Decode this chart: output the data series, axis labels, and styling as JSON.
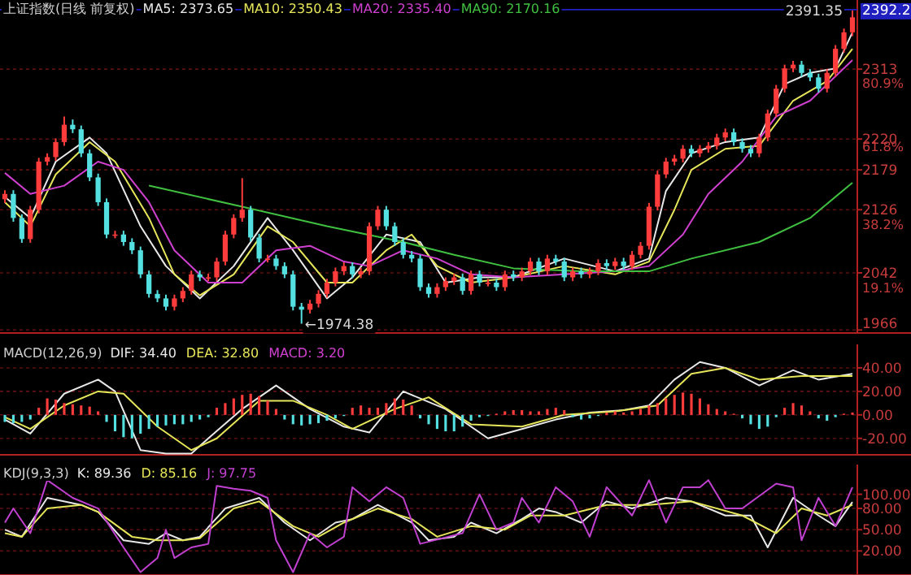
{
  "chart_data": [
    {
      "type": "candlestick",
      "title": "上证指数(日线 前复权)",
      "legend": "top",
      "grid": "y",
      "tick_labels": "y",
      "categories": [
        null,
        null,
        null,
        null,
        null,
        null,
        null,
        null,
        null,
        null,
        null,
        null,
        null,
        null,
        null,
        null,
        null,
        null,
        null,
        null,
        null,
        null,
        null,
        null,
        null,
        null,
        null,
        null,
        null,
        null,
        null,
        null,
        null,
        null,
        null,
        null,
        null,
        null,
        null,
        null,
        null,
        null,
        null,
        null,
        null,
        null,
        null,
        null,
        null,
        null,
        null,
        null,
        null,
        null,
        null,
        null,
        null,
        null,
        null,
        null,
        null,
        null,
        null,
        null,
        null,
        null,
        null,
        null,
        null,
        null,
        null,
        null,
        null,
        null,
        null,
        null,
        null,
        null,
        null,
        null,
        null,
        null,
        null,
        null,
        null,
        null,
        null,
        null,
        null,
        null,
        null,
        null,
        null,
        null,
        null,
        null,
        null,
        null,
        null,
        null,
        null
      ],
      "ohlc": [
        [
          2140,
          2152,
          2135,
          2147
        ],
        [
          2147,
          2152,
          2110,
          2115
        ],
        [
          2115,
          2120,
          2082,
          2087
        ],
        [
          2087,
          2131,
          2082,
          2126
        ],
        [
          2126,
          2195,
          2121,
          2190
        ],
        [
          2190,
          2201,
          2185,
          2196
        ],
        [
          2196,
          2221,
          2191,
          2216
        ],
        [
          2216,
          2250,
          2211,
          2239
        ],
        [
          2239,
          2246,
          2228,
          2233
        ],
        [
          2233,
          2238,
          2196,
          2201
        ],
        [
          2201,
          2206,
          2164,
          2169
        ],
        [
          2169,
          2174,
          2131,
          2136
        ],
        [
          2136,
          2141,
          2088,
          2093
        ],
        [
          2093,
          2098,
          2088,
          2093
        ],
        [
          2093,
          2098,
          2078,
          2083
        ],
        [
          2083,
          2088,
          2067,
          2072
        ],
        [
          2072,
          2077,
          2035,
          2040
        ],
        [
          2040,
          2045,
          2009,
          2014
        ],
        [
          2014,
          2019,
          2003,
          2008
        ],
        [
          2008,
          2013,
          1992,
          1997
        ],
        [
          1997,
          2013,
          1992,
          2008
        ],
        [
          2008,
          2023,
          2003,
          2018
        ],
        [
          2018,
          2045,
          2013,
          2040
        ],
        [
          2040,
          2045,
          2031,
          2036
        ],
        [
          2036,
          2041,
          2031,
          2036
        ],
        [
          2036,
          2062,
          2031,
          2057
        ],
        [
          2057,
          2098,
          2052,
          2093
        ],
        [
          2093,
          2120,
          2088,
          2115
        ],
        [
          2115,
          2168,
          2110,
          2126
        ],
        [
          2126,
          2131,
          2084,
          2089
        ],
        [
          2089,
          2094,
          2056,
          2061
        ],
        [
          2061,
          2066,
          2056,
          2061
        ],
        [
          2061,
          2066,
          2046,
          2051
        ],
        [
          2051,
          2056,
          2035,
          2040
        ],
        [
          2040,
          2045,
          1992,
          1997
        ],
        [
          1997,
          2002,
          1974.38,
          1993
        ],
        [
          1993,
          2006,
          1988,
          2001
        ],
        [
          2001,
          2019,
          1996,
          2014
        ],
        [
          2014,
          2034,
          2009,
          2029
        ],
        [
          2029,
          2049,
          2024,
          2044
        ],
        [
          2044,
          2056,
          2039,
          2051
        ],
        [
          2051,
          2056,
          2035,
          2040
        ],
        [
          2040,
          2049,
          2035,
          2044
        ],
        [
          2044,
          2109,
          2039,
          2104
        ],
        [
          2104,
          2131,
          2099,
          2126
        ],
        [
          2126,
          2131,
          2099,
          2104
        ],
        [
          2104,
          2109,
          2078,
          2083
        ],
        [
          2083,
          2088,
          2061,
          2066
        ],
        [
          2066,
          2071,
          2056,
          2061
        ],
        [
          2061,
          2066,
          2018,
          2023
        ],
        [
          2023,
          2028,
          2009,
          2014
        ],
        [
          2014,
          2028,
          2009,
          2023
        ],
        [
          2023,
          2036,
          2018,
          2031
        ],
        [
          2031,
          2041,
          2026,
          2036
        ],
        [
          2036,
          2041,
          2013,
          2018
        ],
        [
          2018,
          2045,
          2013,
          2040
        ],
        [
          2040,
          2045,
          2024,
          2029
        ],
        [
          2029,
          2034,
          2024,
          2029
        ],
        [
          2029,
          2034,
          2018,
          2023
        ],
        [
          2023,
          2045,
          2018,
          2040
        ],
        [
          2040,
          2045,
          2031,
          2036
        ],
        [
          2036,
          2049,
          2031,
          2044
        ],
        [
          2044,
          2062,
          2039,
          2057
        ],
        [
          2057,
          2062,
          2039,
          2044
        ],
        [
          2044,
          2066,
          2039,
          2061
        ],
        [
          2061,
          2066,
          2052,
          2057
        ],
        [
          2057,
          2062,
          2031,
          2036
        ],
        [
          2036,
          2049,
          2031,
          2044
        ],
        [
          2044,
          2049,
          2035,
          2040
        ],
        [
          2040,
          2049,
          2035,
          2044
        ],
        [
          2044,
          2060,
          2039,
          2055
        ],
        [
          2055,
          2060,
          2046,
          2051
        ],
        [
          2051,
          2062,
          2046,
          2057
        ],
        [
          2057,
          2062,
          2046,
          2051
        ],
        [
          2051,
          2071,
          2046,
          2066
        ],
        [
          2066,
          2083,
          2061,
          2078
        ],
        [
          2078,
          2135,
          2073,
          2130
        ],
        [
          2130,
          2178,
          2125,
          2173
        ],
        [
          2173,
          2195,
          2168,
          2190
        ],
        [
          2190,
          2199,
          2185,
          2194
        ],
        [
          2194,
          2212,
          2189,
          2207
        ],
        [
          2207,
          2212,
          2196,
          2201
        ],
        [
          2201,
          2212,
          2196,
          2207
        ],
        [
          2207,
          2216,
          2202,
          2211
        ],
        [
          2211,
          2227,
          2206,
          2222
        ],
        [
          2222,
          2234,
          2217,
          2229
        ],
        [
          2229,
          2234,
          2211,
          2216
        ],
        [
          2216,
          2221,
          2202,
          2207
        ],
        [
          2207,
          2212,
          2196,
          2201
        ],
        [
          2201,
          2227,
          2196,
          2222
        ],
        [
          2222,
          2259,
          2217,
          2254
        ],
        [
          2254,
          2292,
          2249,
          2287
        ],
        [
          2287,
          2319,
          2282,
          2314
        ],
        [
          2314,
          2324,
          2309,
          2319
        ],
        [
          2319,
          2324,
          2303,
          2308
        ],
        [
          2308,
          2313,
          2297,
          2302
        ],
        [
          2302,
          2307,
          2282,
          2287
        ],
        [
          2287,
          2313,
          2282,
          2308
        ],
        [
          2308,
          2345,
          2303,
          2340
        ],
        [
          2340,
          2367,
          2335,
          2362
        ],
        [
          2362,
          2391.35,
          2357,
          2382
        ]
      ],
      "series": [
        {
          "name": "MA5: 2373.65",
          "color": "#e8e8e8",
          "type": "line",
          "values": [
            2143,
            null,
            null,
            2115,
            null,
            null,
            2190,
            null,
            null,
            null,
            2222,
            null,
            2201,
            null,
            null,
            null,
            2104,
            null,
            null,
            2051,
            null,
            null,
            null,
            2008,
            null,
            null,
            null,
            2051,
            null,
            null,
            null,
            2115,
            null,
            null,
            2072,
            null,
            null,
            null,
            2008,
            null,
            null,
            2036,
            null,
            null,
            null,
            2093,
            null,
            null,
            null,
            2083,
            null,
            null,
            2029,
            null,
            null,
            null,
            2036,
            null,
            null,
            null,
            2036,
            null,
            null,
            null,
            null,
            null,
            2061,
            null,
            null,
            null,
            null,
            null,
            2044,
            null,
            null,
            null,
            2061,
            null,
            2151,
            null,
            null,
            2201,
            null,
            null,
            null,
            2216,
            null,
            null,
            null,
            2222,
            null,
            null,
            2293,
            null,
            null,
            2308,
            null,
            null,
            2314,
            null,
            2362
          ]
        },
        {
          "name": "MA10: 2350.43",
          "color": "#e6e65a",
          "type": "line",
          "values": [
            2136,
            null,
            null,
            2104,
            null,
            null,
            2173,
            null,
            null,
            null,
            2216,
            null,
            null,
            2190,
            null,
            null,
            null,
            2115,
            null,
            null,
            2040,
            null,
            null,
            2012,
            null,
            null,
            null,
            2040,
            null,
            null,
            null,
            2104,
            null,
            null,
            2083,
            null,
            null,
            null,
            2029,
            null,
            null,
            2029,
            null,
            null,
            null,
            2072,
            null,
            null,
            2093,
            null,
            null,
            2051,
            null,
            null,
            null,
            2029,
            null,
            null,
            null,
            null,
            2036,
            null,
            null,
            null,
            null,
            null,
            2051,
            null,
            null,
            null,
            null,
            null,
            2040,
            null,
            null,
            null,
            2057,
            null,
            null,
            2126,
            null,
            2179,
            null,
            null,
            null,
            2207,
            null,
            null,
            null,
            2211,
            null,
            null,
            null,
            2271,
            null,
            null,
            null,
            2297,
            null,
            null,
            2340
          ]
        },
        {
          "name": "MA20: 2335.40",
          "color": "#d040d0",
          "type": "line",
          "values": [
            2175,
            null,
            null,
            2147,
            null,
            null,
            null,
            2158,
            null,
            null,
            null,
            2190,
            null,
            null,
            2179,
            null,
            null,
            2136,
            null,
            null,
            2072,
            null,
            null,
            null,
            2029,
            null,
            null,
            null,
            2029,
            null,
            null,
            null,
            2072,
            null,
            null,
            null,
            2078,
            null,
            null,
            null,
            2057,
            null,
            null,
            2051,
            null,
            null,
            null,
            2072,
            null,
            null,
            null,
            2061,
            null,
            null,
            null,
            2040,
            null,
            null,
            null,
            null,
            2036,
            null,
            null,
            null,
            null,
            null,
            2040,
            null,
            null,
            null,
            null,
            null,
            2044,
            null,
            null,
            null,
            2051,
            null,
            null,
            null,
            2093,
            null,
            null,
            2147,
            null,
            null,
            null,
            2190,
            null,
            null,
            null,
            2250,
            null,
            null,
            null,
            2271,
            null,
            null,
            null,
            null,
            2325
          ]
        },
        {
          "name": "MA90: 2170.16",
          "color": "#40c040",
          "type": "line",
          "values": [
            null,
            null,
            null,
            null,
            null,
            null,
            null,
            null,
            null,
            null,
            null,
            null,
            null,
            null,
            null,
            null,
            null,
            2158,
            null,
            null,
            null,
            null,
            null,
            null,
            null,
            null,
            null,
            null,
            2130,
            null,
            null,
            null,
            null,
            null,
            null,
            null,
            null,
            null,
            2104,
            null,
            null,
            null,
            null,
            null,
            null,
            null,
            null,
            2083,
            null,
            null,
            null,
            null,
            null,
            2066,
            null,
            null,
            null,
            null,
            null,
            null,
            2048,
            null,
            null,
            null,
            null,
            null,
            null,
            null,
            2044,
            null,
            null,
            null,
            null,
            null,
            null,
            null,
            2044,
            null,
            null,
            null,
            null,
            2061,
            null,
            null,
            null,
            null,
            null,
            null,
            null,
            2083,
            null,
            null,
            null,
            null,
            null,
            2115,
            null,
            null,
            null,
            null,
            2162
          ]
        }
      ],
      "ylim": [
        1962,
        2405
      ],
      "yticks": [
        1966,
        2042,
        2126,
        2179,
        2220,
        2313
      ],
      "y2lim": [
        0.9,
        101.6
      ],
      "y2ticks": [
        {
          "value": 19.1,
          "label": "19.1%"
        },
        {
          "value": 38.2,
          "label": "38.2%"
        },
        {
          "value": 61.8,
          "label": "61.8%"
        },
        {
          "value": 80.9,
          "label": "80.9%"
        }
      ],
      "ref_lines": [
        {
          "axis": "y",
          "value": 2392.2,
          "label": "2392.2",
          "color": "#2020c0"
        }
      ],
      "annotations": [
        "2391.35",
        "←1974.38"
      ]
    },
    {
      "type": "bar",
      "title": "MACD(12,26,9)",
      "legend": "top",
      "annotations": [
        "MACD: 3.20"
      ],
      "grid": "y",
      "tick_labels": "y",
      "categories": [
        null,
        null,
        null,
        null,
        null,
        null,
        null,
        null,
        null,
        null,
        null,
        null,
        null,
        null,
        null,
        null,
        null,
        null,
        null,
        null,
        null,
        null,
        null,
        null,
        null,
        null,
        null,
        null,
        null,
        null,
        null,
        null,
        null,
        null,
        null,
        null,
        null,
        null,
        null,
        null,
        null,
        null,
        null,
        null,
        null,
        null,
        null,
        null,
        null,
        null,
        null,
        null,
        null,
        null,
        null,
        null,
        null,
        null,
        null,
        null,
        null,
        null,
        null,
        null,
        null,
        null,
        null,
        null,
        null,
        null,
        null,
        null,
        null,
        null,
        null,
        null,
        null,
        null,
        null,
        null,
        null,
        null,
        null,
        null,
        null,
        null,
        null,
        null,
        null,
        null,
        null,
        null,
        null,
        null,
        null,
        null,
        null,
        null,
        null,
        null,
        null
      ],
      "series": [
        {
          "name": "DIF: 34.40",
          "color": "#e8e8e8",
          "type": "line",
          "values": [
            -4,
            null,
            null,
            -16,
            null,
            null,
            null,
            18,
            null,
            null,
            null,
            30,
            null,
            20,
            null,
            null,
            -30,
            null,
            null,
            -33,
            null,
            null,
            -33,
            null,
            -20,
            null,
            null,
            null,
            5,
            null,
            null,
            null,
            25,
            null,
            null,
            null,
            5,
            null,
            null,
            null,
            -10,
            null,
            null,
            -15,
            null,
            null,
            null,
            20,
            null,
            null,
            null,
            null,
            5,
            null,
            null,
            null,
            null,
            -20,
            null,
            null,
            null,
            -12,
            null,
            null,
            null,
            -4,
            null,
            null,
            null,
            2,
            null,
            null,
            null,
            4,
            null,
            null,
            8,
            null,
            null,
            30,
            null,
            null,
            45,
            null,
            null,
            40,
            null,
            null,
            null,
            25,
            null,
            null,
            null,
            38,
            null,
            null,
            30,
            null,
            null,
            null,
            35
          ]
        },
        {
          "name": "DEA: 32.80",
          "color": "#e6e65a",
          "type": "line",
          "values": [
            -2,
            null,
            null,
            -12,
            null,
            null,
            null,
            8,
            null,
            null,
            null,
            20,
            null,
            null,
            18,
            null,
            null,
            null,
            -10,
            null,
            null,
            null,
            -30,
            null,
            null,
            -20,
            null,
            null,
            null,
            null,
            12,
            null,
            null,
            null,
            12,
            null,
            null,
            null,
            0,
            null,
            null,
            -12,
            null,
            null,
            null,
            null,
            5,
            null,
            null,
            null,
            15,
            null,
            null,
            null,
            null,
            -8,
            null,
            null,
            null,
            null,
            null,
            -10,
            null,
            null,
            null,
            null,
            0,
            null,
            null,
            null,
            null,
            null,
            3,
            null,
            null,
            null,
            null,
            8,
            null,
            null,
            null,
            35,
            null,
            null,
            null,
            40,
            null,
            null,
            null,
            30,
            null,
            null,
            null,
            null,
            33,
            null,
            null,
            null,
            null,
            null,
            33
          ]
        },
        {
          "type": "bar",
          "colors": [
            "#54e0e0",
            "#54e0e0",
            "#54e0e0",
            "#54e0e0",
            "#ff3c3c",
            "#ff3c3c",
            "#ff3c3c",
            "#ff3c3c",
            "#ff3c3c",
            "#ff3c3c",
            "#ff3c3c",
            "#ff3c3c",
            "#54e0e0",
            "#54e0e0",
            "#54e0e0",
            "#54e0e0",
            "#54e0e0",
            "#54e0e0",
            "#54e0e0",
            "#54e0e0",
            "#54e0e0",
            "#54e0e0",
            "#54e0e0",
            "#54e0e0",
            "#54e0e0",
            "#ff3c3c",
            "#ff3c3c",
            "#ff3c3c",
            "#ff3c3c",
            "#ff3c3c",
            "#ff3c3c",
            "#ff3c3c",
            "#ff3c3c",
            "#54e0e0",
            "#54e0e0",
            "#54e0e0",
            "#54e0e0",
            "#54e0e0",
            "#54e0e0",
            "#54e0e0",
            "#54e0e0",
            "#ff3c3c",
            "#ff3c3c",
            "#ff3c3c",
            "#ff3c3c",
            "#ff3c3c",
            "#ff3c3c",
            "#ff3c3c",
            "#ff3c3c",
            "#54e0e0",
            "#54e0e0",
            "#54e0e0",
            "#54e0e0",
            "#54e0e0",
            "#54e0e0",
            "#54e0e0",
            "#54e0e0",
            "#54e0e0",
            "#ff3c3c",
            "#ff3c3c",
            "#ff3c3c",
            "#ff3c3c",
            "#ff3c3c",
            "#ff3c3c",
            "#ff3c3c",
            "#ff3c3c",
            "#ff3c3c",
            "#54e0e0",
            "#54e0e0",
            "#54e0e0",
            "#54e0e0",
            "#ff3c3c",
            "#ff3c3c",
            "#ff3c3c",
            "#ff3c3c",
            "#ff3c3c",
            "#ff3c3c",
            "#ff3c3c",
            "#ff3c3c",
            "#ff3c3c",
            "#ff3c3c",
            "#ff3c3c",
            "#ff3c3c",
            "#ff3c3c",
            "#ff3c3c",
            "#ff3c3c",
            "#ff3c3c",
            "#54e0e0",
            "#54e0e0",
            "#54e0e0",
            "#54e0e0",
            "#54e0e0",
            "#ff3c3c",
            "#ff3c3c",
            "#ff3c3c",
            "#ff3c3c",
            "#54e0e0",
            "#54e0e0",
            "#54e0e0",
            "#ff3c3c",
            "#ff3c3c"
          ],
          "values": [
            -6,
            -7,
            -6,
            -4,
            6,
            14,
            13,
            10,
            9,
            8,
            7,
            3,
            -6,
            -14,
            -19,
            -20,
            -16,
            -12,
            -10,
            -9,
            -8,
            -8,
            -6,
            -4,
            -2,
            6,
            10,
            14,
            17,
            18,
            16,
            12,
            5,
            -4,
            -8,
            -9,
            -8,
            -7,
            -5,
            -3,
            -1,
            6,
            8,
            6,
            6,
            10,
            14,
            13,
            8,
            -3,
            -8,
            -12,
            -14,
            -14,
            -10,
            -5,
            -2,
            -1,
            1,
            3,
            4,
            4,
            3,
            3,
            5,
            6,
            4,
            -2,
            -4,
            -3,
            -1,
            2,
            3,
            2,
            3,
            5,
            8,
            10,
            14,
            17,
            19,
            18,
            14,
            9,
            5,
            3,
            1,
            -3,
            -8,
            -12,
            -10,
            -2,
            6,
            10,
            8,
            3,
            -3,
            -5,
            -2,
            1,
            2
          ]
        }
      ],
      "ylim": [
        -34,
        60
      ],
      "yticks": [
        {
          "value": -20,
          "label": "-20.00"
        },
        {
          "value": 0,
          "label": "0.00"
        },
        {
          "value": 20,
          "label": "20.00"
        },
        {
          "value": 40,
          "label": "40.00"
        }
      ]
    },
    {
      "type": "line",
      "title": "KDJ(9,3,3)",
      "legend": "top",
      "grid": "y",
      "tick_labels": "y",
      "categories": [
        null,
        null,
        null,
        null,
        null,
        null,
        null,
        null,
        null,
        null,
        null,
        null,
        null,
        null,
        null,
        null,
        null,
        null,
        null,
        null,
        null,
        null,
        null,
        null,
        null,
        null,
        null,
        null,
        null,
        null,
        null,
        null,
        null,
        null,
        null,
        null,
        null,
        null,
        null,
        null,
        null,
        null,
        null,
        null,
        null,
        null,
        null,
        null,
        null,
        null,
        null,
        null,
        null,
        null,
        null,
        null,
        null,
        null,
        null,
        null,
        null,
        null,
        null,
        null,
        null,
        null,
        null,
        null,
        null,
        null,
        null,
        null,
        null,
        null,
        null,
        null,
        null,
        null,
        null,
        null,
        null,
        null,
        null,
        null,
        null,
        null,
        null,
        null,
        null,
        null,
        null,
        null,
        null,
        null,
        null,
        null,
        null,
        null,
        null,
        null,
        null
      ],
      "series": [
        {
          "name": "K: 89.36",
          "color": "#e8e8e8",
          "values": [
            50,
            null,
            40,
            null,
            null,
            95,
            null,
            null,
            null,
            85,
            null,
            75,
            null,
            null,
            35,
            null,
            null,
            30,
            null,
            45,
            null,
            35,
            null,
            40,
            null,
            null,
            80,
            null,
            null,
            null,
            95,
            null,
            null,
            60,
            null,
            null,
            35,
            null,
            null,
            60,
            null,
            65,
            null,
            null,
            85,
            null,
            null,
            null,
            60,
            null,
            35,
            null,
            null,
            40,
            null,
            60,
            null,
            null,
            45,
            null,
            null,
            65,
            null,
            80,
            null,
            75,
            null,
            null,
            60,
            null,
            null,
            90,
            null,
            null,
            80,
            null,
            null,
            null,
            95,
            null,
            null,
            90,
            null,
            null,
            null,
            70,
            null,
            null,
            70,
            null,
            25,
            null,
            null,
            95,
            null,
            null,
            70,
            null,
            55,
            null,
            89
          ]
        },
        {
          "name": "D: 85.16",
          "color": "#e6e65a",
          "values": [
            45,
            null,
            40,
            null,
            null,
            80,
            null,
            null,
            null,
            85,
            null,
            75,
            null,
            null,
            null,
            40,
            null,
            null,
            35,
            null,
            null,
            35,
            null,
            38,
            null,
            null,
            null,
            80,
            null,
            null,
            90,
            null,
            null,
            null,
            55,
            null,
            null,
            40,
            null,
            null,
            60,
            null,
            null,
            null,
            80,
            null,
            null,
            null,
            65,
            null,
            null,
            40,
            null,
            null,
            null,
            55,
            null,
            null,
            null,
            50,
            null,
            null,
            70,
            null,
            null,
            null,
            70,
            null,
            null,
            null,
            null,
            85,
            null,
            null,
            null,
            null,
            85,
            null,
            null,
            null,
            null,
            90,
            null,
            null,
            null,
            null,
            null,
            70,
            null,
            null,
            null,
            45,
            null,
            null,
            80,
            null,
            null,
            70,
            null,
            null,
            85
          ]
        },
        {
          "name": "J: 97.75",
          "color": "#c040d0",
          "values": [
            60,
            80,
            null,
            45,
            null,
            120,
            null,
            null,
            95,
            null,
            null,
            80,
            null,
            null,
            25,
            null,
            -10,
            null,
            10,
            50,
            10,
            null,
            25,
            null,
            30,
            112,
            null,
            108,
            null,
            105,
            null,
            95,
            35,
            null,
            -10,
            null,
            45,
            null,
            25,
            null,
            40,
            110,
            null,
            90,
            null,
            110,
            null,
            95,
            null,
            30,
            null,
            null,
            null,
            null,
            45,
            null,
            100,
            null,
            50,
            null,
            60,
            95,
            null,
            60,
            null,
            110,
            null,
            90,
            null,
            40,
            null,
            110,
            null,
            null,
            70,
            null,
            120,
            null,
            60,
            null,
            110,
            null,
            110,
            120,
            null,
            80,
            null,
            80,
            null,
            null,
            null,
            115,
            null,
            110,
            35,
            null,
            95,
            null,
            55,
            null,
            110
          ]
        }
      ],
      "ylim": [
        -14,
        142
      ],
      "yticks": [
        {
          "value": 20,
          "label": "20.00"
        },
        {
          "value": 50,
          "label": "50.00"
        },
        {
          "value": 80,
          "label": "80.00"
        },
        {
          "value": 100,
          "label": "100.00"
        }
      ]
    }
  ]
}
